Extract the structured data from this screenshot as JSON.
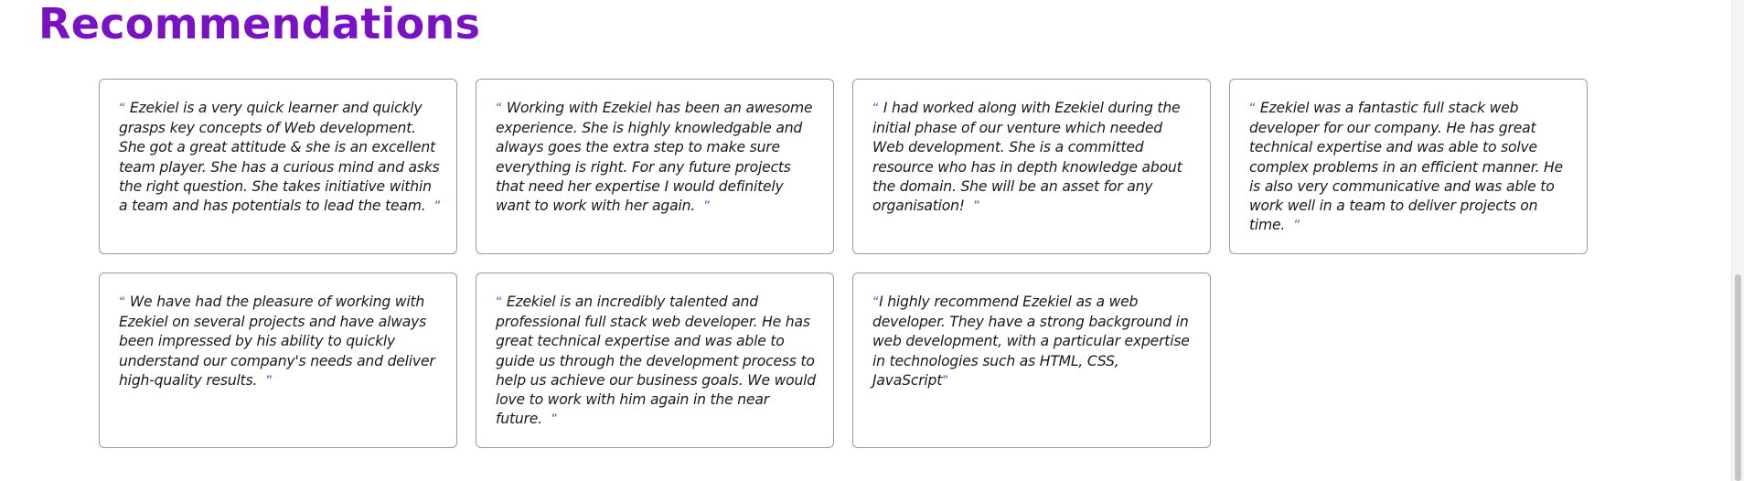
{
  "section": {
    "title": "Recommendations"
  },
  "recommendations": [
    {
      "open_quote": "“",
      "text": "Ezekiel is a very quick learner and quickly grasps key concepts of Web development. She got a great attitude & she is an excellent team player. She has a curious mind and asks the right question. She takes initiative within a team and has potentials to lead the team.",
      "close_quote": "”"
    },
    {
      "open_quote": "“",
      "text": "Working with Ezekiel has been an awesome experience. She is highly knowledgable and always goes the extra step to make sure everything is right. For any future projects that need her expertise I would definitely want to work with her again.",
      "close_quote": "”"
    },
    {
      "open_quote": "“",
      "text": "I had worked along with Ezekiel during the initial phase of our venture which needed Web development. She is a committed resource who has in depth knowledge about the domain. She will be an asset for any organisation!",
      "close_quote": "”"
    },
    {
      "open_quote": "“",
      "text": "Ezekiel was a fantastic full stack web developer for our company. He has great technical expertise and was able to solve complex problems in an efficient manner. He is also very communicative and was able to work well in a team to deliver projects on time.",
      "close_quote": "”"
    },
    {
      "open_quote": "“",
      "text": "We have had the pleasure of working with Ezekiel on several projects and have always been impressed by his ability to quickly understand our company's needs and deliver high-quality results.",
      "close_quote": "”"
    },
    {
      "open_quote": "“",
      "text": "Ezekiel is an incredibly talented and professional full stack web developer. He has great technical expertise and was able to guide us through the development process to help us achieve our business goals. We would love to work with him again in the near future.",
      "close_quote": "”"
    },
    {
      "open_quote": "“",
      "text": "I highly recommend Ezekiel as a web developer. They have a strong background in web development, with a particular expertise in technologies such as HTML, CSS, JavaScript",
      "close_quote": "”"
    }
  ],
  "colors": {
    "title": "#7a12c4",
    "quote_mark": "#8a3bd1",
    "card_border": "#9a9a9a",
    "text": "#1a1a1a"
  }
}
